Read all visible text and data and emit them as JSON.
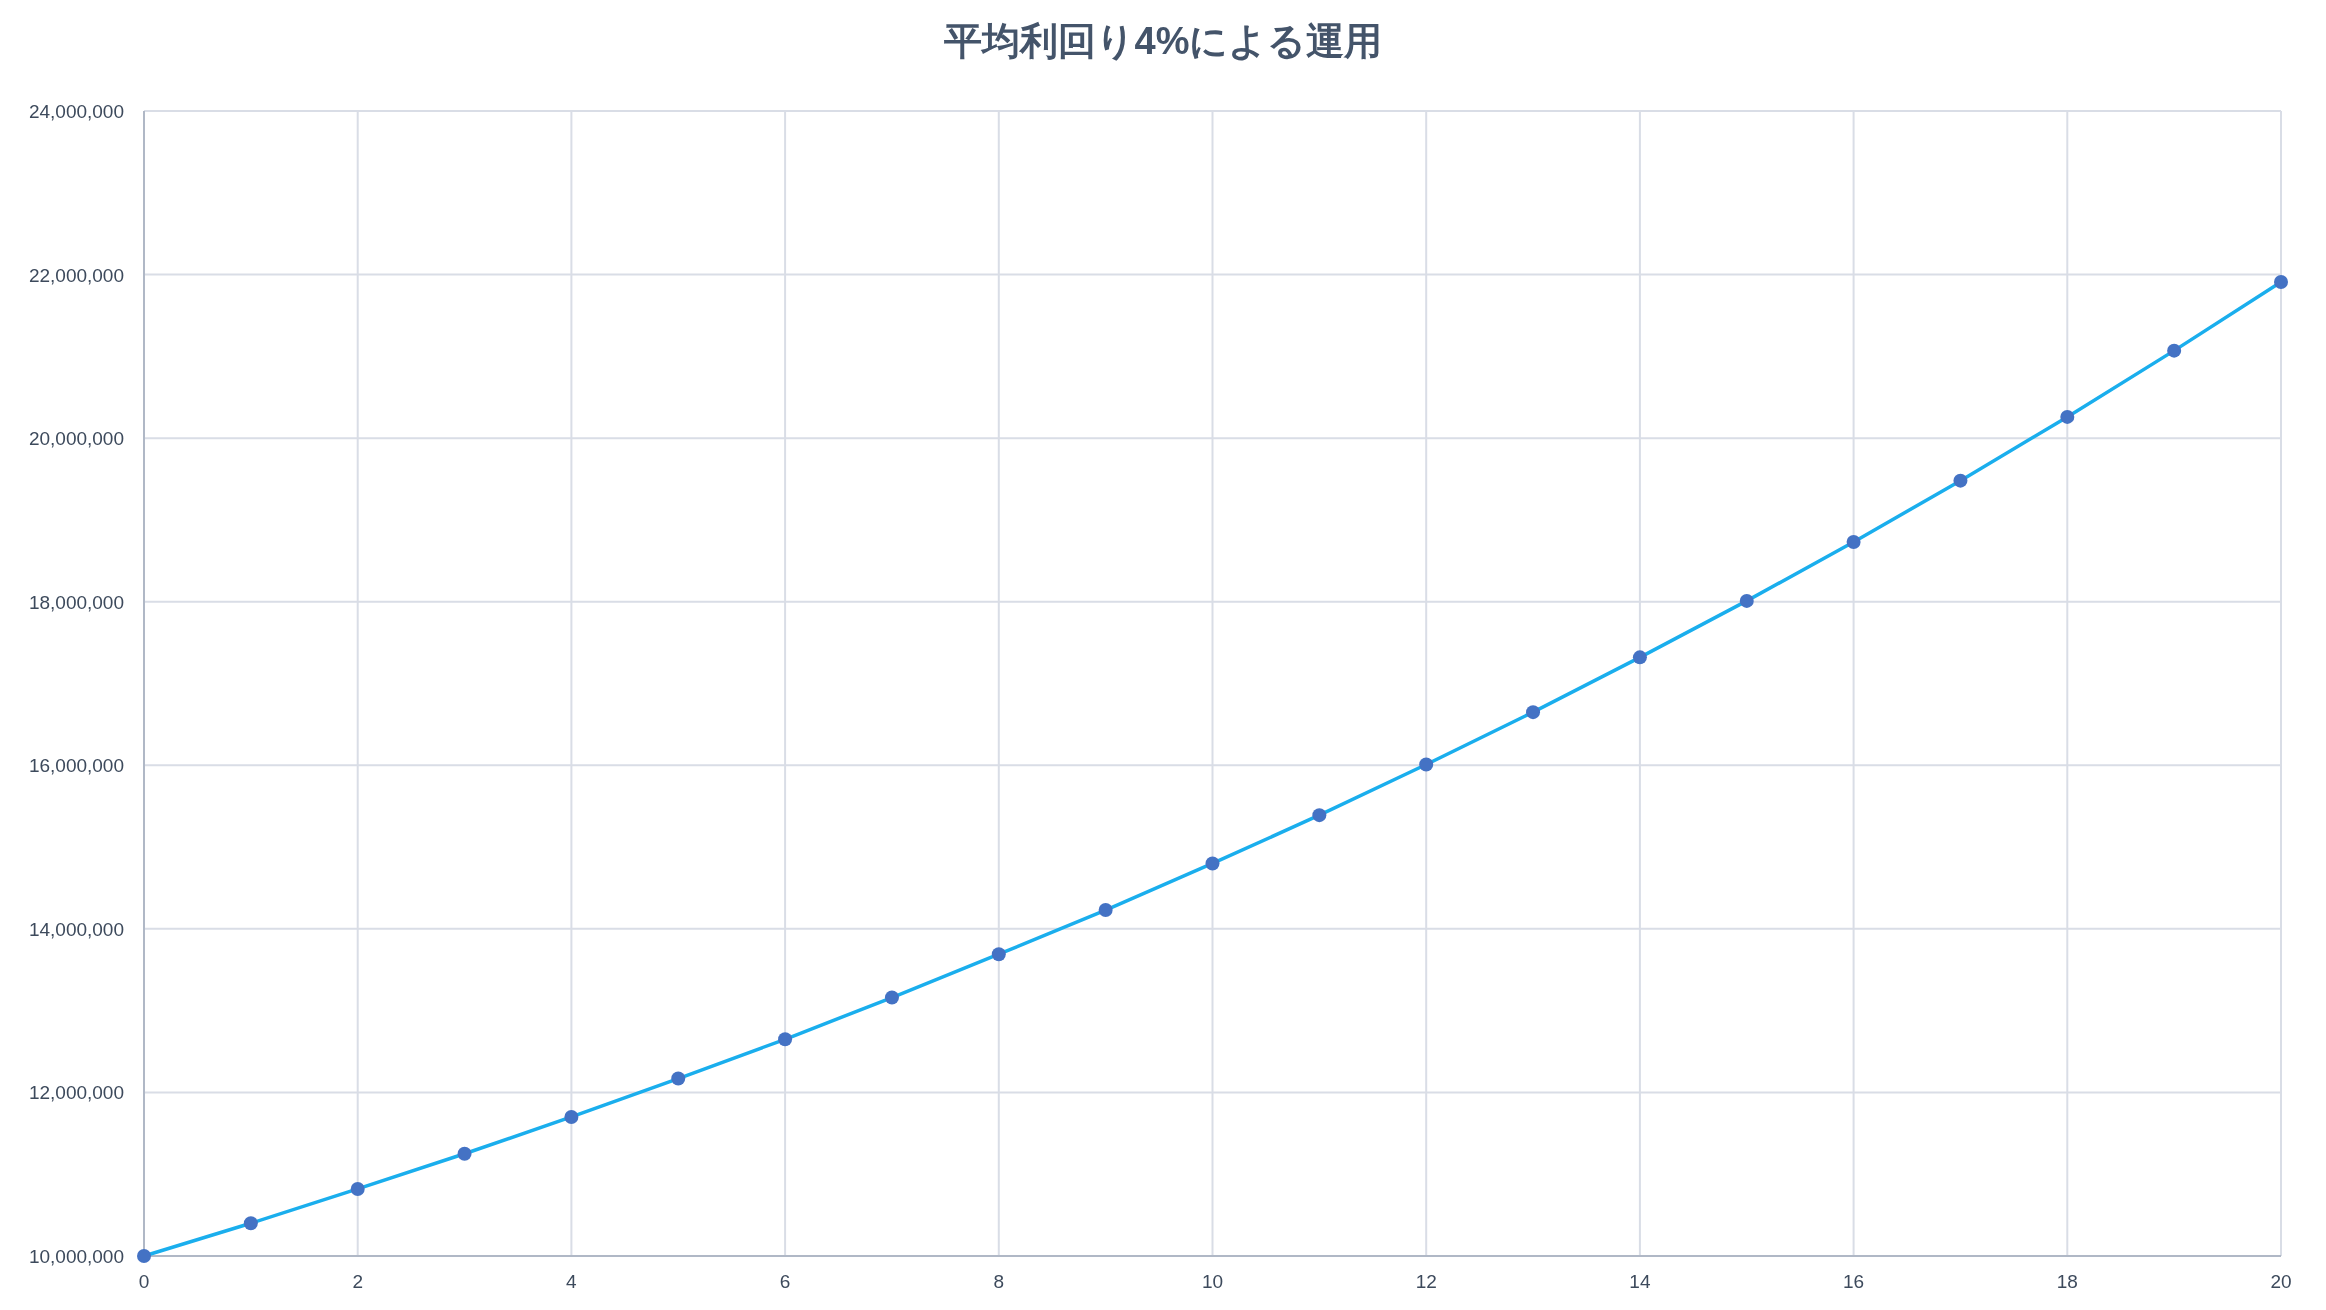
{
  "chart_data": {
    "type": "line",
    "title": "平均利回り4%による運用",
    "x": [
      0,
      1,
      2,
      3,
      4,
      5,
      6,
      7,
      8,
      9,
      10,
      11,
      12,
      13,
      14,
      15,
      16,
      17,
      18,
      19,
      20
    ],
    "series": [
      {
        "color": "#1aaeed",
        "colors": [
          "#4472c4",
          "#4472c4",
          "#4472c4",
          "#4472c4",
          "#4472c4",
          "#4472c4",
          "#4472c4",
          "#4472c4",
          "#4472c4",
          "#4472c4",
          "#4472c4",
          "#4472c4",
          "#4472c4",
          "#4472c4",
          "#4472c4",
          "#4472c4",
          "#4472c4",
          "#4472c4",
          "#4472c4",
          "#4472c4",
          "#4472c4"
        ],
        "values": [
          10000000,
          10400000,
          10820000,
          11250000,
          11700000,
          12170000,
          12650000,
          13160000,
          13690000,
          14230000,
          14800000,
          15390000,
          16010000,
          16650000,
          17320000,
          18010000,
          18730000,
          19480000,
          20260000,
          21070000,
          21910000
        ]
      }
    ],
    "xlim": [
      0,
      20
    ],
    "xticks": [
      0,
      2,
      4,
      6,
      8,
      10,
      12,
      14,
      16,
      18,
      20
    ],
    "ylim": [
      10000000,
      24000000
    ],
    "yticks": [
      {
        "value": 10000000,
        "label": "10,000,000"
      },
      {
        "value": 12000000,
        "label": "12,000,000"
      },
      {
        "value": 14000000,
        "label": "14,000,000"
      },
      {
        "value": 16000000,
        "label": "16,000,000"
      },
      {
        "value": 18000000,
        "label": "18,000,000"
      },
      {
        "value": 20000000,
        "label": "20,000,000"
      },
      {
        "value": 22000000,
        "label": "22,000,000"
      },
      {
        "value": 24000000,
        "label": "24,000,000"
      }
    ],
    "grid": true,
    "marker": "circle",
    "line_style": "solid"
  }
}
